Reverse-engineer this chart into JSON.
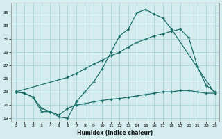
{
  "xlabel": "Humidex (Indice chaleur)",
  "bg_color": "#d4ecee",
  "grid_color": "#aad4d8",
  "line_color": "#1a6e68",
  "xlim": [
    -0.5,
    23.5
  ],
  "ylim": [
    18.5,
    36.5
  ],
  "xticks": [
    0,
    1,
    2,
    3,
    4,
    5,
    6,
    7,
    8,
    9,
    10,
    11,
    12,
    13,
    14,
    15,
    16,
    17,
    18,
    19,
    20,
    21,
    22,
    23
  ],
  "yticks": [
    19,
    21,
    23,
    25,
    27,
    29,
    31,
    33,
    35
  ],
  "curve1_x": [
    0,
    1,
    2,
    3,
    4,
    5,
    6,
    7,
    8,
    9,
    10,
    11,
    12,
    13,
    14,
    15,
    16,
    17,
    18,
    23
  ],
  "curve1_y": [
    23,
    22.8,
    22.2,
    20.0,
    20.0,
    19.2,
    19.0,
    21.5,
    23.0,
    24.5,
    26.5,
    29.0,
    31.5,
    32.5,
    35.0,
    35.5,
    34.8,
    34.2,
    32.5,
    22.8
  ],
  "curve2_x": [
    0,
    6,
    7,
    8,
    9,
    10,
    11,
    12,
    13,
    14,
    15,
    16,
    17,
    18,
    19,
    20,
    21,
    22,
    23
  ],
  "curve2_y": [
    23,
    25.2,
    25.8,
    26.5,
    27.2,
    27.8,
    28.5,
    29.0,
    29.8,
    30.5,
    31.0,
    31.5,
    31.8,
    32.2,
    32.5,
    31.2,
    26.8,
    24.0,
    23.0
  ],
  "curve3_x": [
    0,
    1,
    2,
    3,
    4,
    5,
    6,
    7,
    8,
    9,
    10,
    11,
    12,
    13,
    14,
    15,
    16,
    17,
    18,
    19,
    20,
    21,
    22,
    23
  ],
  "curve3_y": [
    23,
    22.8,
    22.2,
    20.5,
    20.0,
    19.5,
    20.5,
    21.0,
    21.2,
    21.5,
    21.7,
    21.9,
    22.0,
    22.2,
    22.4,
    22.6,
    22.8,
    23.0,
    23.0,
    23.2,
    23.2,
    23.0,
    22.8,
    22.8
  ]
}
